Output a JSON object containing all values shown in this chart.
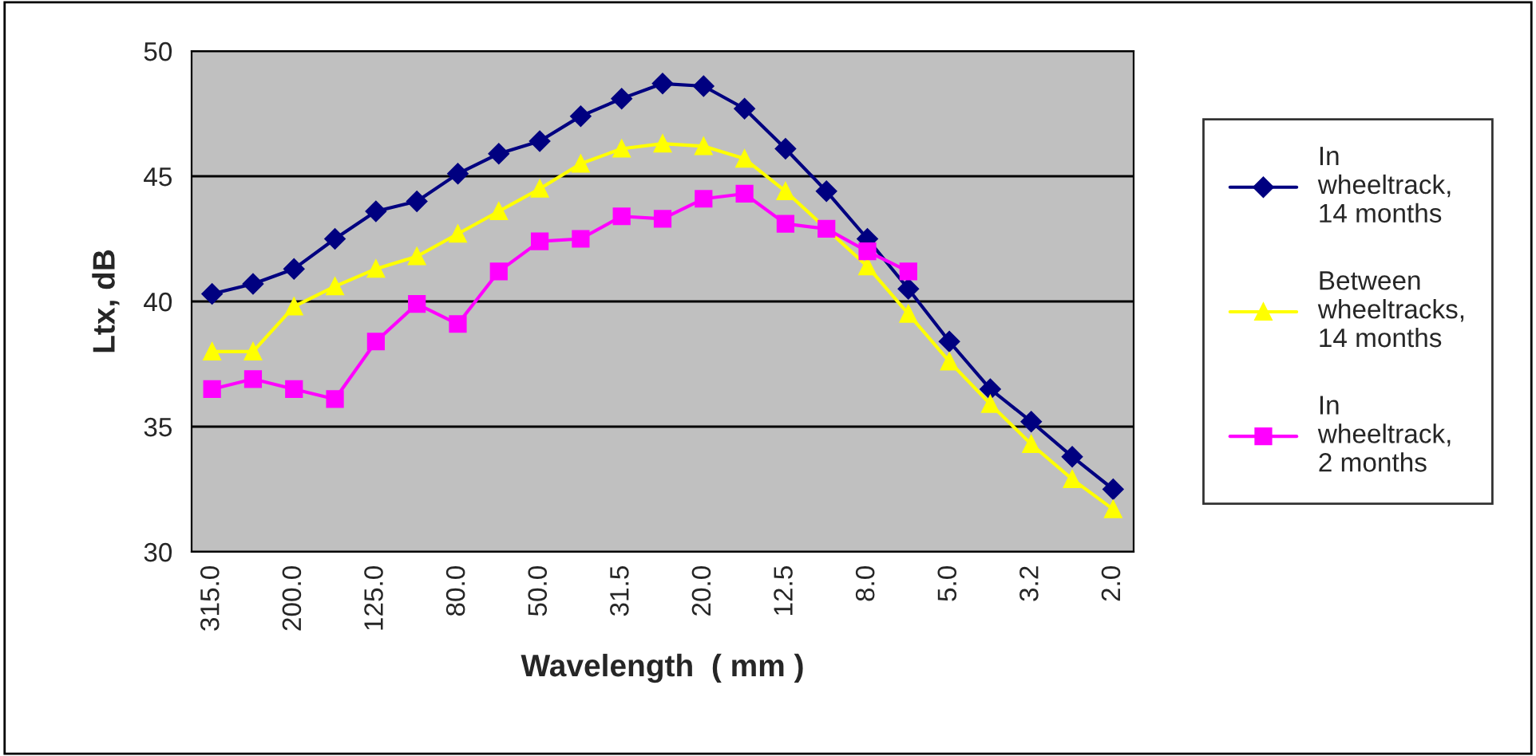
{
  "chart_data": {
    "type": "line",
    "xlabel": "Wavelength  ( mm )",
    "ylabel": "Ltx, dB",
    "categories": [
      "315.0",
      null,
      "200.0",
      null,
      "125.0",
      null,
      "80.0",
      null,
      "50.0",
      null,
      "31.5",
      null,
      "20.0",
      null,
      "12.5",
      null,
      "8.0",
      null,
      "5.0",
      null,
      "3.2",
      null,
      "2.0"
    ],
    "ylim": [
      30,
      50
    ],
    "yticks": [
      30,
      35,
      40,
      45,
      50
    ],
    "grid": "y",
    "legend": "right",
    "series": [
      {
        "name": "In\nwheeltrack,\n14 months",
        "color": "#000080",
        "marker": "diamond",
        "values": [
          40.3,
          40.7,
          41.3,
          42.5,
          43.6,
          44.0,
          45.1,
          45.9,
          46.4,
          47.4,
          48.1,
          48.7,
          48.6,
          47.7,
          46.1,
          44.4,
          42.5,
          40.5,
          38.4,
          36.5,
          35.2,
          33.8,
          32.5
        ]
      },
      {
        "name": "Between\nwheeltracks,\n14 months",
        "color": "#ffff00",
        "marker": "triangle",
        "values": [
          38.0,
          38.0,
          39.8,
          40.6,
          41.3,
          41.8,
          42.7,
          43.6,
          44.5,
          45.5,
          46.1,
          46.3,
          46.2,
          45.7,
          44.4,
          null,
          41.4,
          39.5,
          37.6,
          35.9,
          34.3,
          32.9,
          31.7
        ]
      },
      {
        "name": "In\nwheeltrack,\n2 months",
        "color": "#ff00ff",
        "marker": "square",
        "values": [
          36.5,
          36.9,
          36.5,
          36.1,
          38.4,
          39.9,
          39.1,
          41.2,
          42.4,
          42.5,
          43.4,
          43.3,
          44.1,
          44.3,
          43.1,
          42.9,
          42.0,
          41.2,
          null,
          null,
          null,
          null,
          null
        ]
      }
    ]
  }
}
